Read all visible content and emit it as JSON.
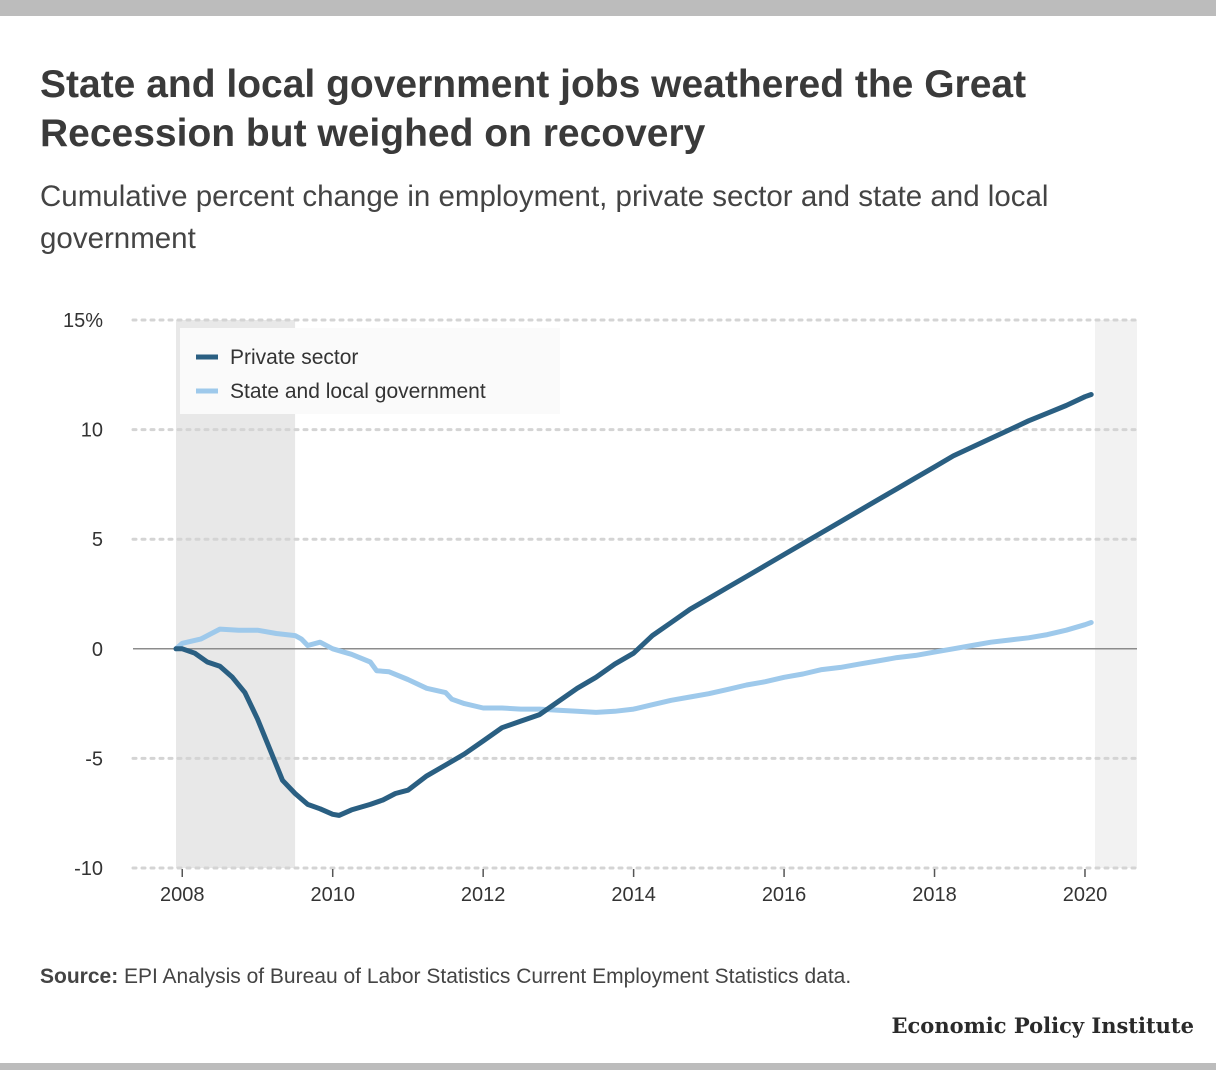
{
  "title": "State and local government jobs weathered the Great Recession but weighed on recovery",
  "subtitle": "Cumulative percent change in employment, private sector and state and local government",
  "source": {
    "label": "Source:",
    "text": " EPI Analysis of Bureau of Labor Statistics Current Employment Statistics data."
  },
  "publisher": "Economic Policy Institute",
  "colors": {
    "private": "#2a5f82",
    "state_local": "#9ec9eb",
    "recession_shade": "#e8e8e8",
    "zero_line": "#8c8c8c",
    "grid": "#d4d4d4"
  },
  "chart_data": {
    "type": "line",
    "title": "State and local government jobs weathered the Great Recession but weighed on recovery",
    "xlabel": "",
    "ylabel": "",
    "xlim": [
      2007.97,
      2020.08
    ],
    "ylim": [
      -10,
      15
    ],
    "x_ticks": [
      2008,
      2010,
      2012,
      2014,
      2016,
      2018,
      2020
    ],
    "y_ticks": [
      15,
      10,
      5,
      0,
      -5,
      -10
    ],
    "y_tick_labels": [
      "15%",
      "10",
      "5",
      "0",
      "-5",
      "-10"
    ],
    "grid": "horizontal dotted",
    "legend_position": "top-left",
    "recession": [
      2007.917,
      2009.5
    ],
    "series": [
      {
        "name": "Private sector",
        "color": "#2a5f82",
        "points": [
          [
            2007.917,
            0.0
          ],
          [
            2008.0,
            0.0
          ],
          [
            2008.167,
            -0.2
          ],
          [
            2008.333,
            -0.6
          ],
          [
            2008.5,
            -0.8
          ],
          [
            2008.667,
            -1.3
          ],
          [
            2008.833,
            -2.0
          ],
          [
            2009.0,
            -3.2
          ],
          [
            2009.167,
            -4.6
          ],
          [
            2009.333,
            -6.0
          ],
          [
            2009.5,
            -6.6
          ],
          [
            2009.667,
            -7.1
          ],
          [
            2009.833,
            -7.3
          ],
          [
            2010.0,
            -7.55
          ],
          [
            2010.083,
            -7.6
          ],
          [
            2010.25,
            -7.35
          ],
          [
            2010.5,
            -7.1
          ],
          [
            2010.667,
            -6.9
          ],
          [
            2010.833,
            -6.6
          ],
          [
            2011.0,
            -6.45
          ],
          [
            2011.25,
            -5.8
          ],
          [
            2011.5,
            -5.3
          ],
          [
            2011.75,
            -4.8
          ],
          [
            2012.0,
            -4.2
          ],
          [
            2012.25,
            -3.6
          ],
          [
            2012.5,
            -3.3
          ],
          [
            2012.75,
            -3.0
          ],
          [
            2013.0,
            -2.4
          ],
          [
            2013.25,
            -1.8
          ],
          [
            2013.5,
            -1.3
          ],
          [
            2013.75,
            -0.7
          ],
          [
            2014.0,
            -0.2
          ],
          [
            2014.25,
            0.6
          ],
          [
            2014.5,
            1.2
          ],
          [
            2014.75,
            1.8
          ],
          [
            2015.0,
            2.3
          ],
          [
            2015.25,
            2.8
          ],
          [
            2015.5,
            3.3
          ],
          [
            2015.75,
            3.8
          ],
          [
            2016.0,
            4.3
          ],
          [
            2016.25,
            4.8
          ],
          [
            2016.5,
            5.3
          ],
          [
            2016.75,
            5.8
          ],
          [
            2017.0,
            6.3
          ],
          [
            2017.25,
            6.8
          ],
          [
            2017.5,
            7.3
          ],
          [
            2017.75,
            7.8
          ],
          [
            2018.0,
            8.3
          ],
          [
            2018.25,
            8.8
          ],
          [
            2018.5,
            9.2
          ],
          [
            2018.75,
            9.6
          ],
          [
            2019.0,
            10.0
          ],
          [
            2019.25,
            10.4
          ],
          [
            2019.5,
            10.75
          ],
          [
            2019.75,
            11.1
          ],
          [
            2020.0,
            11.5
          ],
          [
            2020.083,
            11.6
          ]
        ]
      },
      {
        "name": "State and local government",
        "color": "#9ec9eb",
        "points": [
          [
            2007.917,
            0.0
          ],
          [
            2008.0,
            0.25
          ],
          [
            2008.25,
            0.45
          ],
          [
            2008.5,
            0.9
          ],
          [
            2008.75,
            0.85
          ],
          [
            2009.0,
            0.85
          ],
          [
            2009.25,
            0.7
          ],
          [
            2009.5,
            0.6
          ],
          [
            2009.583,
            0.45
          ],
          [
            2009.667,
            0.15
          ],
          [
            2009.833,
            0.3
          ],
          [
            2010.0,
            0.0
          ],
          [
            2010.25,
            -0.25
          ],
          [
            2010.5,
            -0.6
          ],
          [
            2010.583,
            -1.0
          ],
          [
            2010.75,
            -1.05
          ],
          [
            2011.0,
            -1.4
          ],
          [
            2011.25,
            -1.8
          ],
          [
            2011.5,
            -2.0
          ],
          [
            2011.583,
            -2.3
          ],
          [
            2011.75,
            -2.5
          ],
          [
            2012.0,
            -2.7
          ],
          [
            2012.25,
            -2.7
          ],
          [
            2012.5,
            -2.75
          ],
          [
            2012.75,
            -2.75
          ],
          [
            2013.0,
            -2.8
          ],
          [
            2013.25,
            -2.85
          ],
          [
            2013.5,
            -2.9
          ],
          [
            2013.75,
            -2.85
          ],
          [
            2014.0,
            -2.75
          ],
          [
            2014.25,
            -2.55
          ],
          [
            2014.5,
            -2.35
          ],
          [
            2014.75,
            -2.2
          ],
          [
            2015.0,
            -2.05
          ],
          [
            2015.25,
            -1.85
          ],
          [
            2015.5,
            -1.65
          ],
          [
            2015.75,
            -1.5
          ],
          [
            2016.0,
            -1.3
          ],
          [
            2016.25,
            -1.15
          ],
          [
            2016.5,
            -0.95
          ],
          [
            2016.75,
            -0.85
          ],
          [
            2017.0,
            -0.7
          ],
          [
            2017.25,
            -0.55
          ],
          [
            2017.5,
            -0.4
          ],
          [
            2017.75,
            -0.3
          ],
          [
            2018.0,
            -0.15
          ],
          [
            2018.25,
            0.0
          ],
          [
            2018.5,
            0.15
          ],
          [
            2018.75,
            0.3
          ],
          [
            2019.0,
            0.4
          ],
          [
            2019.25,
            0.5
          ],
          [
            2019.5,
            0.65
          ],
          [
            2019.75,
            0.85
          ],
          [
            2020.0,
            1.1
          ],
          [
            2020.083,
            1.2
          ]
        ]
      }
    ]
  }
}
